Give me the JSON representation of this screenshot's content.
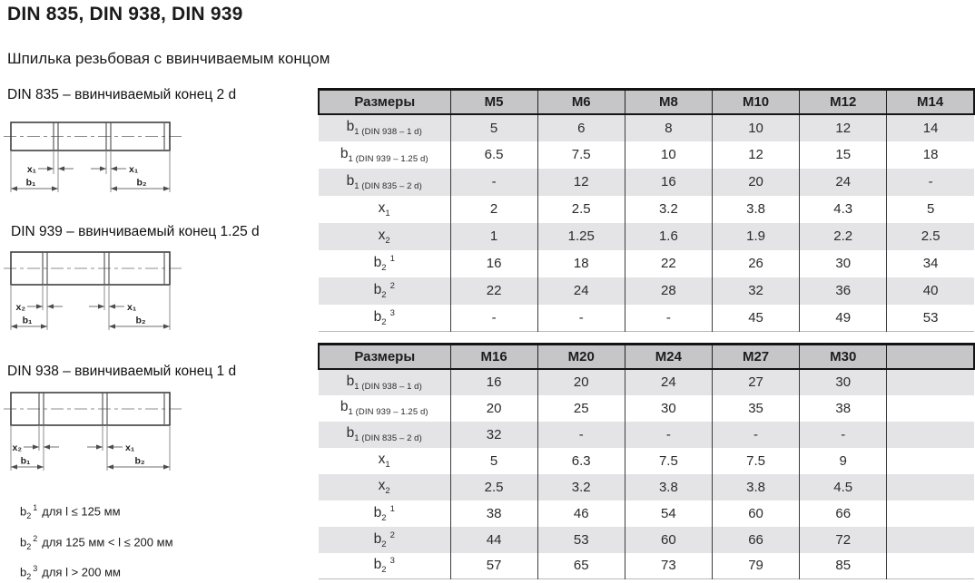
{
  "page": {
    "title": "DIN 835, DIN 938, DIN 939",
    "subtitle": "Шпилька резьбовая с ввинчиваемым концом"
  },
  "colors": {
    "table_header_bg": "#c6c6c8",
    "table_alt_row_bg": "#e4e4e6",
    "table_border": "#141414",
    "text": "#1a1a1a"
  },
  "drawings": [
    {
      "caption": "DIN 835 – ввинчиваемый конец 2 d",
      "labels": {
        "xl": "x₁",
        "xr": "x₁",
        "bl": "b₁",
        "br": "b₂"
      }
    },
    {
      "caption": "DIN 939 – ввинчиваемый конец 1.25 d",
      "labels": {
        "xl": "x₂",
        "xr": "x₁",
        "bl": "b₁",
        "br": "b₂"
      }
    },
    {
      "caption": "DIN 938 – ввинчиваемый конец 1 d",
      "labels": {
        "xl": "x₂",
        "xr": "x₁",
        "bl": "b₁",
        "br": "b₂"
      }
    }
  ],
  "footnotes": [
    {
      "base": "b",
      "sub": "2",
      "sup": "1",
      "text": "для l ≤ 125 мм"
    },
    {
      "base": "b",
      "sub": "2",
      "sup": "2",
      "text": "для 125 мм < l ≤ 200 мм"
    },
    {
      "base": "b",
      "sub": "2",
      "sup": "3",
      "text": "для l > 200 мм"
    }
  ],
  "tables": [
    {
      "header": [
        "Размеры",
        "M5",
        "M6",
        "M8",
        "M10",
        "M12",
        "M14"
      ],
      "rows": [
        {
          "base": "b",
          "sub": "1 (DIN 938 – 1 d)",
          "sup": "",
          "values": [
            "5",
            "6",
            "8",
            "10",
            "12",
            "14"
          ]
        },
        {
          "base": "b",
          "sub": "1 (DIN 939 – 1.25 d)",
          "sup": "",
          "values": [
            "6.5",
            "7.5",
            "10",
            "12",
            "15",
            "18"
          ]
        },
        {
          "base": "b",
          "sub": "1 (DIN 835 – 2 d)",
          "sup": "",
          "values": [
            "-",
            "12",
            "16",
            "20",
            "24",
            "-"
          ]
        },
        {
          "base": "x",
          "sub": "1",
          "sup": "",
          "values": [
            "2",
            "2.5",
            "3.2",
            "3.8",
            "4.3",
            "5"
          ]
        },
        {
          "base": "x",
          "sub": "2",
          "sup": "",
          "values": [
            "1",
            "1.25",
            "1.6",
            "1.9",
            "2.2",
            "2.5"
          ]
        },
        {
          "base": "b",
          "sub": "2",
          "sup": "1",
          "values": [
            "16",
            "18",
            "22",
            "26",
            "30",
            "34"
          ]
        },
        {
          "base": "b",
          "sub": "2",
          "sup": "2",
          "values": [
            "22",
            "24",
            "28",
            "32",
            "36",
            "40"
          ]
        },
        {
          "base": "b",
          "sub": "2",
          "sup": "3",
          "values": [
            "-",
            "-",
            "-",
            "45",
            "49",
            "53"
          ]
        }
      ]
    },
    {
      "header": [
        "Размеры",
        "M16",
        "M20",
        "M24",
        "M27",
        "M30",
        ""
      ],
      "rows": [
        {
          "base": "b",
          "sub": "1 (DIN 938 – 1 d)",
          "sup": "",
          "values": [
            "16",
            "20",
            "24",
            "27",
            "30",
            ""
          ]
        },
        {
          "base": "b",
          "sub": "1 (DIN 939 – 1.25 d)",
          "sup": "",
          "values": [
            "20",
            "25",
            "30",
            "35",
            "38",
            ""
          ]
        },
        {
          "base": "b",
          "sub": "1 (DIN 835 – 2 d)",
          "sup": "",
          "values": [
            "32",
            "-",
            "-",
            "-",
            "-",
            ""
          ]
        },
        {
          "base": "x",
          "sub": "1",
          "sup": "",
          "values": [
            "5",
            "6.3",
            "7.5",
            "7.5",
            "9",
            ""
          ]
        },
        {
          "base": "x",
          "sub": "2",
          "sup": "",
          "values": [
            "2.5",
            "3.2",
            "3.8",
            "3.8",
            "4.5",
            ""
          ]
        },
        {
          "base": "b",
          "sub": "2",
          "sup": "1",
          "values": [
            "38",
            "46",
            "54",
            "60",
            "66",
            ""
          ]
        },
        {
          "base": "b",
          "sub": "2",
          "sup": "2",
          "values": [
            "44",
            "53",
            "60",
            "66",
            "72",
            ""
          ]
        },
        {
          "base": "b",
          "sub": "2",
          "sup": "3",
          "values": [
            "57",
            "65",
            "73",
            "79",
            "85",
            ""
          ]
        }
      ]
    }
  ]
}
